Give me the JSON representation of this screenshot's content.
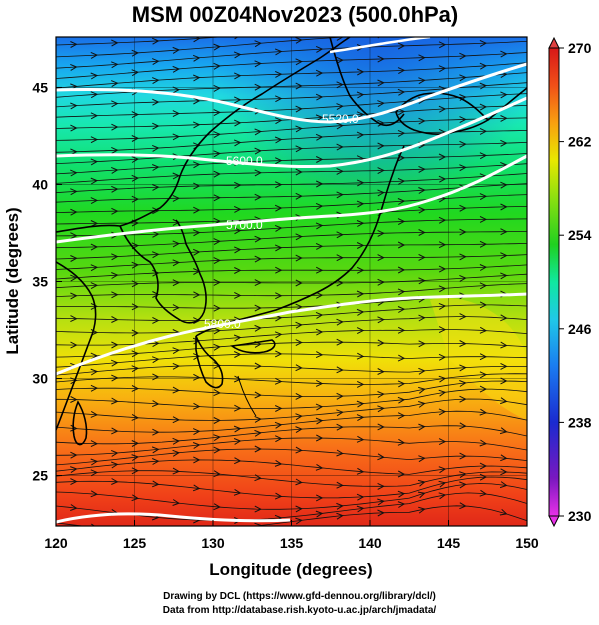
{
  "title": "MSM 00Z04Nov2023 (500.0hPa)",
  "axes": {
    "xlabel": "Longitude (degrees)",
    "ylabel": "Latitude  (degrees)",
    "xticks": [
      "120",
      "125",
      "130",
      "135",
      "140",
      "145",
      "150"
    ],
    "yticks": [
      "25",
      "30",
      "35",
      "40",
      "45"
    ],
    "xlim": [
      120,
      150
    ],
    "ylim": [
      22.4,
      47.6
    ]
  },
  "colorbar": {
    "ticks": [
      "270",
      "262",
      "254",
      "246",
      "238",
      "230"
    ],
    "range": [
      230,
      270
    ],
    "colors": [
      "#e830e8",
      "#7a18c0",
      "#1a2ad0",
      "#1a7cf0",
      "#20c8e8",
      "#10e8a0",
      "#20d020",
      "#8ce010",
      "#e8e800",
      "#f8a010",
      "#f05018",
      "#d81818"
    ]
  },
  "contour_labels": {
    "c5520": "5520.0",
    "c5600": "5600.0",
    "c5700": "5700.0",
    "c5800": "5800.0"
  },
  "credits": {
    "line1": "Drawing by DCL (https://www.gfd-dennou.org/library/dcl/)",
    "line2": "Data from http://database.rish.kyoto-u.ac.jp/arch/jmadata/"
  }
}
